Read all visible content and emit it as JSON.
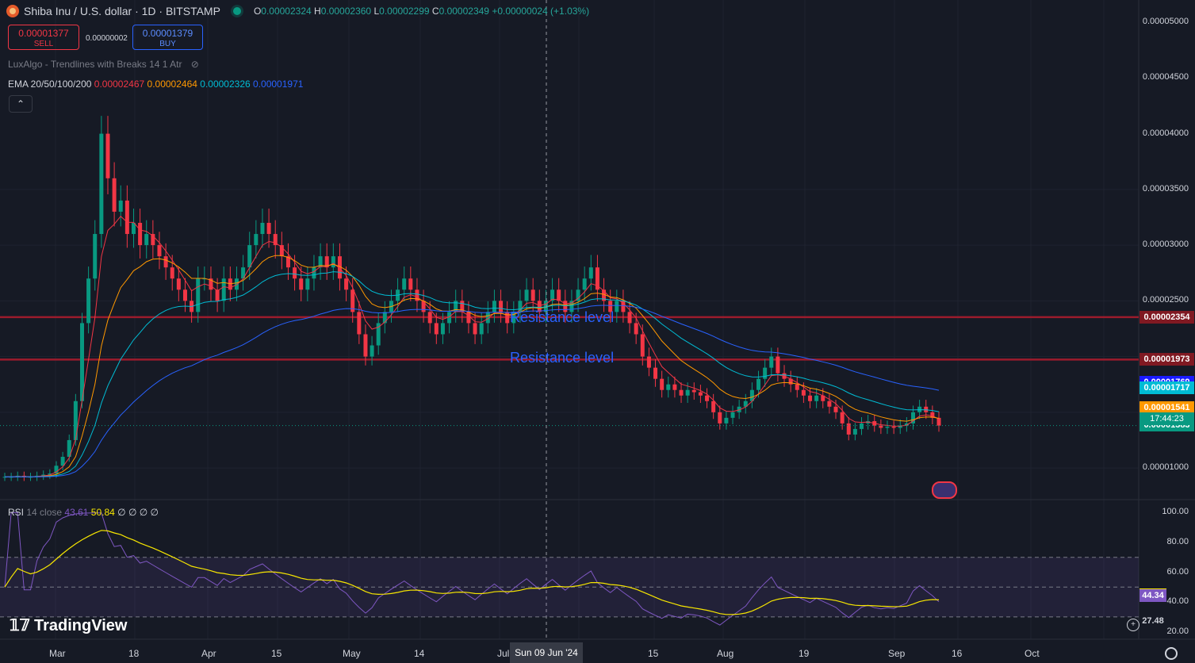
{
  "header": {
    "title": "Shiba Inu / U.S. dollar · 1D · BITSTAMP",
    "ohlc": [
      {
        "key": "O",
        "value": "0.00002324"
      },
      {
        "key": "H",
        "value": "0.00002360"
      },
      {
        "key": "L",
        "value": "0.00002299"
      },
      {
        "key": "C",
        "value": "0.00002349"
      }
    ],
    "change": "+0.00000024 (+1.03%)"
  },
  "trade": {
    "sell_price": "0.00001377",
    "sell_label": "SELL",
    "spread": "0.00000002",
    "buy_price": "0.00001379",
    "buy_label": "BUY"
  },
  "indicators": {
    "luxalgo": "LuxAlgo - Trendlines with Breaks 14 1 Atr",
    "ema_label": "EMA 20/50/100/200",
    "ema_values": [
      {
        "value": "0.00002467",
        "color": "#f23645"
      },
      {
        "value": "0.00002464",
        "color": "#ff9800"
      },
      {
        "value": "0.00002326",
        "color": "#00bcd4"
      },
      {
        "value": "0.00001971",
        "color": "#2962ff"
      }
    ],
    "collapse_icon": "chevron-up-icon"
  },
  "price_axis": [
    "0.00005000",
    "0.00004500",
    "0.00004000",
    "0.00003500",
    "0.00003000",
    "0.00002500",
    "0.00001000"
  ],
  "price_tags": [
    {
      "value": "0.00002354",
      "bg": "#801922"
    },
    {
      "value": "0.00001973",
      "bg": "#801922"
    },
    {
      "value": "0.00001769",
      "bg": "#1a1aff"
    },
    {
      "value": "0.00001717",
      "bg": "#00bcd4"
    },
    {
      "value": "0.00001541",
      "bg": "#ff9800"
    },
    {
      "value": "0.00001431",
      "bg": "#f23645"
    },
    {
      "value": "0.00001383",
      "bg": "#089981"
    }
  ],
  "countdown": "17:44:23",
  "annotations": [
    "Resistance level",
    "Resistance level"
  ],
  "rsi": {
    "label": "RSI",
    "params": "14 close",
    "value": "43.61",
    "ma_value": "50.84",
    "placeholders": [
      "∅",
      "∅",
      "∅",
      "∅"
    ],
    "axis": [
      "100.00",
      "80.00",
      "60.00",
      "40.00",
      "20.00"
    ],
    "tags": [
      {
        "value": "45.01",
        "bg": "#f7e600",
        "fg": "#000000"
      },
      {
        "value": "44.34",
        "bg": "#7e57c2",
        "fg": "#ffffff"
      },
      {
        "value": "27.48",
        "bg": "#161a25",
        "fg": "#d1d4dc"
      }
    ]
  },
  "time_axis": [
    "Mar",
    "18",
    "Apr",
    "15",
    "May",
    "14",
    "Jul",
    "15",
    "Aug",
    "19",
    "Sep",
    "16",
    "Oct"
  ],
  "crosshair_date": "Sun 09 Jun '24",
  "logo": "TradingView",
  "chart_data": {
    "type": "candlestick",
    "title": "Shiba Inu / U.S. dollar · 1D · BITSTAMP",
    "ylim": [
      7.3e-06,
      5.2e-05
    ],
    "resistance_levels": [
      2.354e-05,
      1.973e-05
    ],
    "close": [
      9.2e-06,
      9.2e-06,
      9.3e-06,
      9.2e-06,
      9.2e-06,
      9.3e-06,
      9.4e-06,
      9.5e-06,
      1.02e-05,
      1.1e-05,
      1.25e-05,
      1.6e-05,
      2.3e-05,
      2.7e-05,
      3.1e-05,
      4e-05,
      3.6e-05,
      3.3e-05,
      3.4e-05,
      3.1e-05,
      3.2e-05,
      3e-05,
      3.1e-05,
      3e-05,
      2.9e-05,
      2.8e-05,
      2.7e-05,
      2.6e-05,
      2.5e-05,
      2.4e-05,
      2.7e-05,
      2.7e-05,
      2.6e-05,
      2.5e-05,
      2.7e-05,
      2.6e-05,
      2.7e-05,
      2.8e-05,
      3e-05,
      3.1e-05,
      3.2e-05,
      3.1e-05,
      3e-05,
      2.9e-05,
      2.8e-05,
      2.7e-05,
      2.6e-05,
      2.7e-05,
      2.8e-05,
      2.9e-05,
      2.8e-05,
      2.9e-05,
      2.7e-05,
      2.6e-05,
      2.4e-05,
      2.2e-05,
      2e-05,
      2.1e-05,
      2.3e-05,
      2.4e-05,
      2.5e-05,
      2.6e-05,
      2.7e-05,
      2.6e-05,
      2.5e-05,
      2.4e-05,
      2.3e-05,
      2.2e-05,
      2.3e-05,
      2.4e-05,
      2.5e-05,
      2.4e-05,
      2.3e-05,
      2.2e-05,
      2.3e-05,
      2.4e-05,
      2.5e-05,
      2.4e-05,
      2.3e-05,
      2.4e-05,
      2.5e-05,
      2.6e-05,
      2.5e-05,
      2.4e-05,
      2.5e-05,
      2.6e-05,
      2.5e-05,
      2.4e-05,
      2.5e-05,
      2.6e-05,
      2.7e-05,
      2.8e-05,
      2.6e-05,
      2.5e-05,
      2.4e-05,
      2.5e-05,
      2.4e-05,
      2.3e-05,
      2.2e-05,
      2e-05,
      1.9e-05,
      1.8e-05,
      1.7e-05,
      1.75e-05,
      1.7e-05,
      1.65e-05,
      1.7e-05,
      1.68e-05,
      1.65e-05,
      1.6e-05,
      1.5e-05,
      1.4e-05,
      1.45e-05,
      1.5e-05,
      1.55e-05,
      1.6e-05,
      1.7e-05,
      1.8e-05,
      1.9e-05,
      2e-05,
      1.85e-05,
      1.8e-05,
      1.75e-05,
      1.7e-05,
      1.65e-05,
      1.6e-05,
      1.65e-05,
      1.6e-05,
      1.55e-05,
      1.5e-05,
      1.4e-05,
      1.3e-05,
      1.35e-05,
      1.4e-05,
      1.42e-05,
      1.38e-05,
      1.36e-05,
      1.37e-05,
      1.36e-05,
      1.38e-05,
      1.4e-05,
      1.5e-05,
      1.55e-05,
      1.5e-05,
      1.45e-05,
      1.38e-05
    ]
  }
}
